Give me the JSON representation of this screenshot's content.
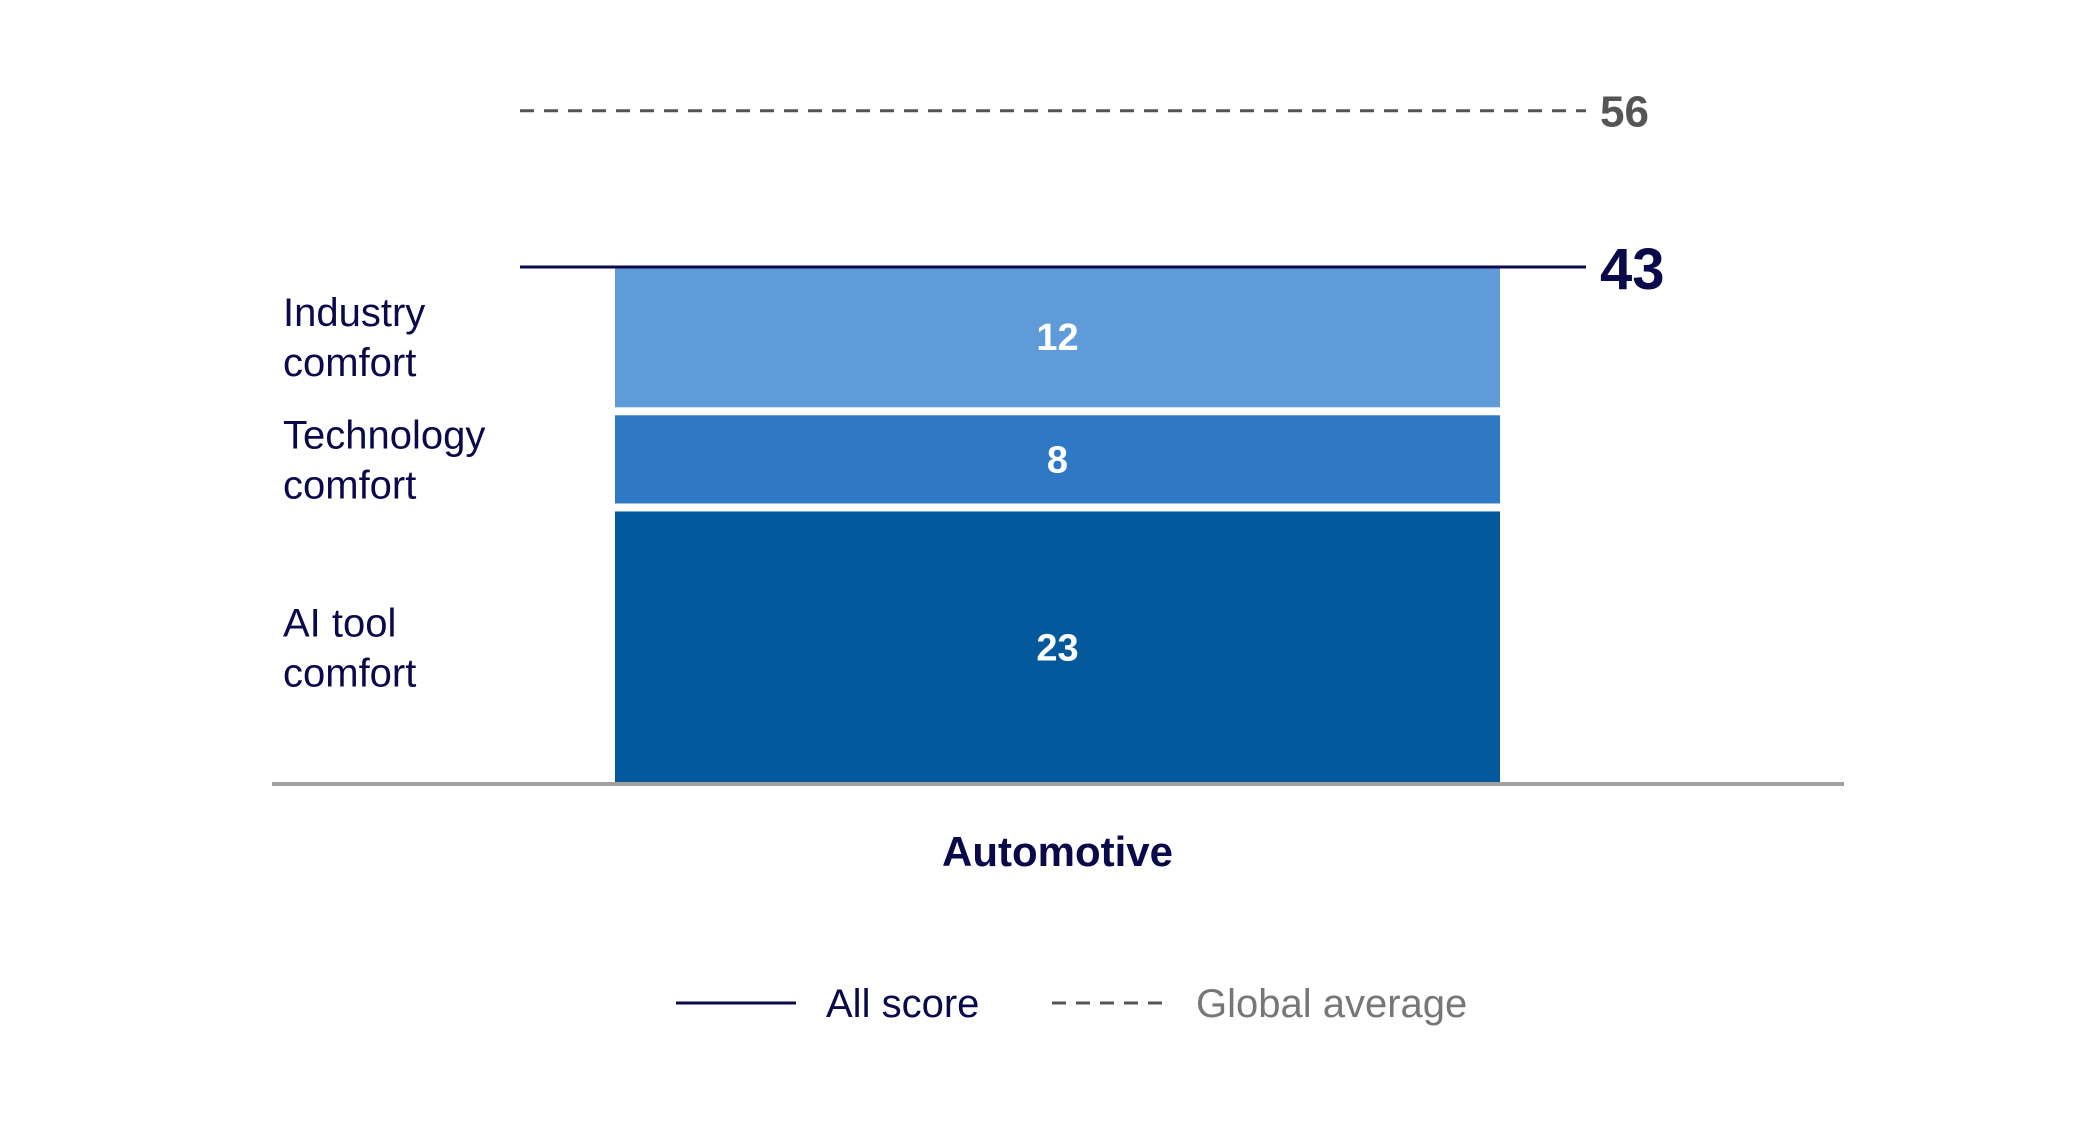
{
  "chart_data": {
    "type": "bar",
    "stacked": true,
    "categories": [
      "Automotive"
    ],
    "series": [
      {
        "name": "AI tool comfort",
        "label_lines": [
          "AI tool",
          "comfort"
        ],
        "values": [
          23
        ],
        "color": "#03599c"
      },
      {
        "name": "Technology comfort",
        "label_lines": [
          "Technology",
          "comfort"
        ],
        "values": [
          8
        ],
        "color": "#2f78c4"
      },
      {
        "name": "Industry comfort",
        "label_lines": [
          "Industry",
          "comfort"
        ],
        "values": [
          12
        ],
        "color": "#5f9ad9"
      }
    ],
    "reference_lines": [
      {
        "name": "All score",
        "value": 43,
        "style": "solid",
        "color": "#0a0a4a"
      },
      {
        "name": "Global average",
        "value": 56,
        "style": "dashed",
        "color": "#555555"
      }
    ],
    "ylim": [
      0,
      62
    ],
    "grid": false,
    "legend": {
      "position": "bottom",
      "entries": [
        {
          "label": "All score",
          "style": "solid",
          "color": "#0a0a4a",
          "text_color": "#0a0a4a"
        },
        {
          "label": "Global average",
          "style": "dashed",
          "color": "#555555",
          "text_color": "#777777"
        }
      ]
    },
    "title": "",
    "xlabel": "",
    "ylabel": ""
  },
  "colors": {
    "axis": "#a0a0a0",
    "text_dark": "#0a0a4a",
    "value_text": "#ffffff"
  }
}
